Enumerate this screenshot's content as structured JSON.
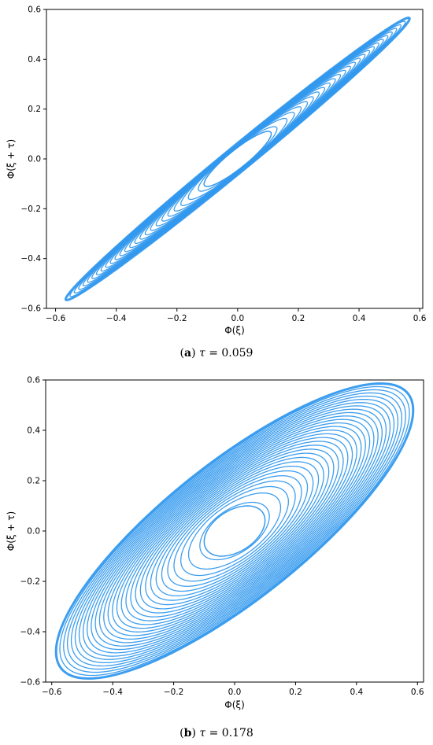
{
  "chart_data": [
    {
      "type": "line",
      "series": [
        {
          "color": "#3399ee",
          "x": [
            -0.56,
            -0.5,
            -0.4,
            -0.3,
            -0.2,
            -0.1,
            0.0,
            0.1,
            0.2,
            0.3,
            0.4,
            0.5,
            0.55
          ],
          "y": [
            -0.56,
            -0.5,
            -0.4,
            -0.3,
            -0.2,
            -0.1,
            0.0,
            0.1,
            0.2,
            0.3,
            0.4,
            0.5,
            0.55
          ],
          "y_upper_branch": [
            -0.54,
            -0.47,
            -0.36,
            -0.25,
            -0.14,
            -0.04,
            0.05,
            0.15,
            0.25,
            0.35,
            0.45,
            0.53,
            0.55
          ],
          "y_lower_branch": [
            -0.56,
            -0.53,
            -0.44,
            -0.35,
            -0.25,
            -0.15,
            -0.05,
            0.04,
            0.14,
            0.25,
            0.36,
            0.47,
            0.54
          ]
        }
      ],
      "xlabel": "Φ(ξ)",
      "ylabel": "Φ(ξ + τ)",
      "xlim": [
        -0.63,
        0.61
      ],
      "ylim": [
        -0.6,
        0.6
      ],
      "xticks": [
        "−0.6",
        "−0.4",
        "−0.2",
        "0.0",
        "0.2",
        "0.4",
        "0.6"
      ],
      "yticks": [
        "−0.6",
        "−0.4",
        "−0.2",
        "0.0",
        "0.2",
        "0.4",
        "0.6"
      ],
      "grid": false,
      "caption": {
        "label": "a",
        "symbol": "τ",
        "value": "= 0.059"
      }
    },
    {
      "type": "line",
      "series": [
        {
          "color": "#3399ee",
          "x": [
            -0.55,
            -0.5,
            -0.4,
            -0.3,
            -0.2,
            -0.1,
            0.0,
            0.1,
            0.2,
            0.3,
            0.4,
            0.5,
            0.55
          ],
          "y": [
            -0.55,
            -0.5,
            -0.4,
            -0.3,
            -0.2,
            -0.1,
            0.0,
            0.1,
            0.2,
            0.3,
            0.4,
            0.5,
            0.55
          ],
          "y_upper_branch": [
            -0.5,
            -0.4,
            -0.27,
            -0.15,
            -0.04,
            0.06,
            0.13,
            0.21,
            0.3,
            0.38,
            0.46,
            0.53,
            0.55
          ],
          "y_lower_branch": [
            -0.55,
            -0.53,
            -0.46,
            -0.38,
            -0.3,
            -0.21,
            -0.12,
            -0.05,
            0.04,
            0.15,
            0.27,
            0.4,
            0.5
          ]
        }
      ],
      "xlabel": "Φ(ξ)",
      "ylabel": "Φ(ξ + τ)",
      "xlim": [
        -0.62,
        0.62
      ],
      "ylim": [
        -0.6,
        0.6
      ],
      "xticks": [
        "−0.6",
        "−0.4",
        "−0.2",
        "0.0",
        "0.2",
        "0.4",
        "0.6"
      ],
      "yticks": [
        "−0.6",
        "−0.4",
        "−0.2",
        "0.0",
        "0.2",
        "0.4",
        "0.6"
      ],
      "grid": false,
      "caption": {
        "label": "b",
        "symbol": "τ",
        "value": "= 0.178"
      }
    }
  ]
}
